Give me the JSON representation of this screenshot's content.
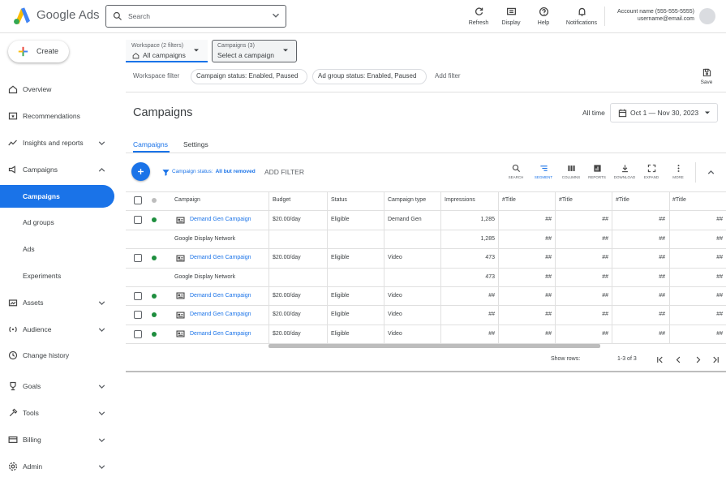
{
  "header": {
    "logo_text": "Google Ads",
    "search_placeholder": "Search",
    "actions": [
      "Refresh",
      "Display",
      "Help",
      "Notifications"
    ],
    "account_name": "Account name (555-555-5555)",
    "email": "username@email.com"
  },
  "sidebar": {
    "create": "Create",
    "items": [
      "Overview",
      "Recommendations",
      "Insights and reports",
      "Campaigns",
      "Campaigns",
      "Ad groups",
      "Ads",
      "Experiments",
      "Assets",
      "Audience",
      "Change history",
      "Goals",
      "Tools",
      "Billing",
      "Admin"
    ]
  },
  "filters": {
    "workspace_label": "Workspace (2 filters)",
    "workspace_value": "All campaigns",
    "campaigns_label": "Campaigns (3)",
    "campaigns_value": "Select a campaign",
    "workspace_filter": "Workspace filter",
    "chips": [
      "Campaign status: Enabled, Paused",
      "Ad group status: Enabled, Paused"
    ],
    "add_filter": "Add filter",
    "save": "Save"
  },
  "page": {
    "title": "Campaigns",
    "date_label": "All time",
    "date_range": "Oct 1 — Nov 30, 2023",
    "tabs": [
      "Campaigns",
      "Settings"
    ]
  },
  "toolbar": {
    "filter_prefix": "Campaign status:",
    "filter_value": "All but removed",
    "add_filter": "ADD FILTER",
    "tools": [
      "SEARCH",
      "SEGMENT",
      "COLUMNS",
      "REPORTS",
      "DOWNLOAD",
      "EXPAND",
      "MORE"
    ]
  },
  "table": {
    "columns": [
      "Campaign",
      "Budget",
      "Status",
      "Campaign type",
      "Impressions",
      "#Title",
      "#Title",
      "#Title",
      "#Title"
    ],
    "rows": [
      [
        "Demand Gen Campaign",
        "$20.00/day",
        "Eligible",
        "Demand Gen",
        "1,285",
        "##",
        "##",
        "##",
        "##"
      ],
      [
        "Google Display Network",
        null,
        null,
        null,
        "1,285",
        "##",
        "##",
        "##",
        "##"
      ],
      [
        "Demand Gen Campaign",
        "$20.00/day",
        "Eligible",
        "Video",
        "473",
        "##",
        "##",
        "##",
        "##"
      ],
      [
        "Google Display Network",
        null,
        null,
        null,
        "473",
        "##",
        "##",
        "##",
        "##"
      ],
      [
        "Demand Gen Campaign",
        "$20.00/day",
        "Eligible",
        "Video",
        "##",
        "##",
        "##",
        "##",
        "##"
      ],
      [
        "Demand Gen Campaign",
        "$20.00/day",
        "Eligible",
        "Video",
        "##",
        "##",
        "##",
        "##",
        "##"
      ],
      [
        "Demand Gen Campaign",
        "$20.00/day",
        "Eligible",
        "Video",
        "##",
        "##",
        "##",
        "##",
        "##"
      ]
    ]
  },
  "footer": {
    "show_rows": "Show rows:",
    "range": "1-3 of 3"
  }
}
